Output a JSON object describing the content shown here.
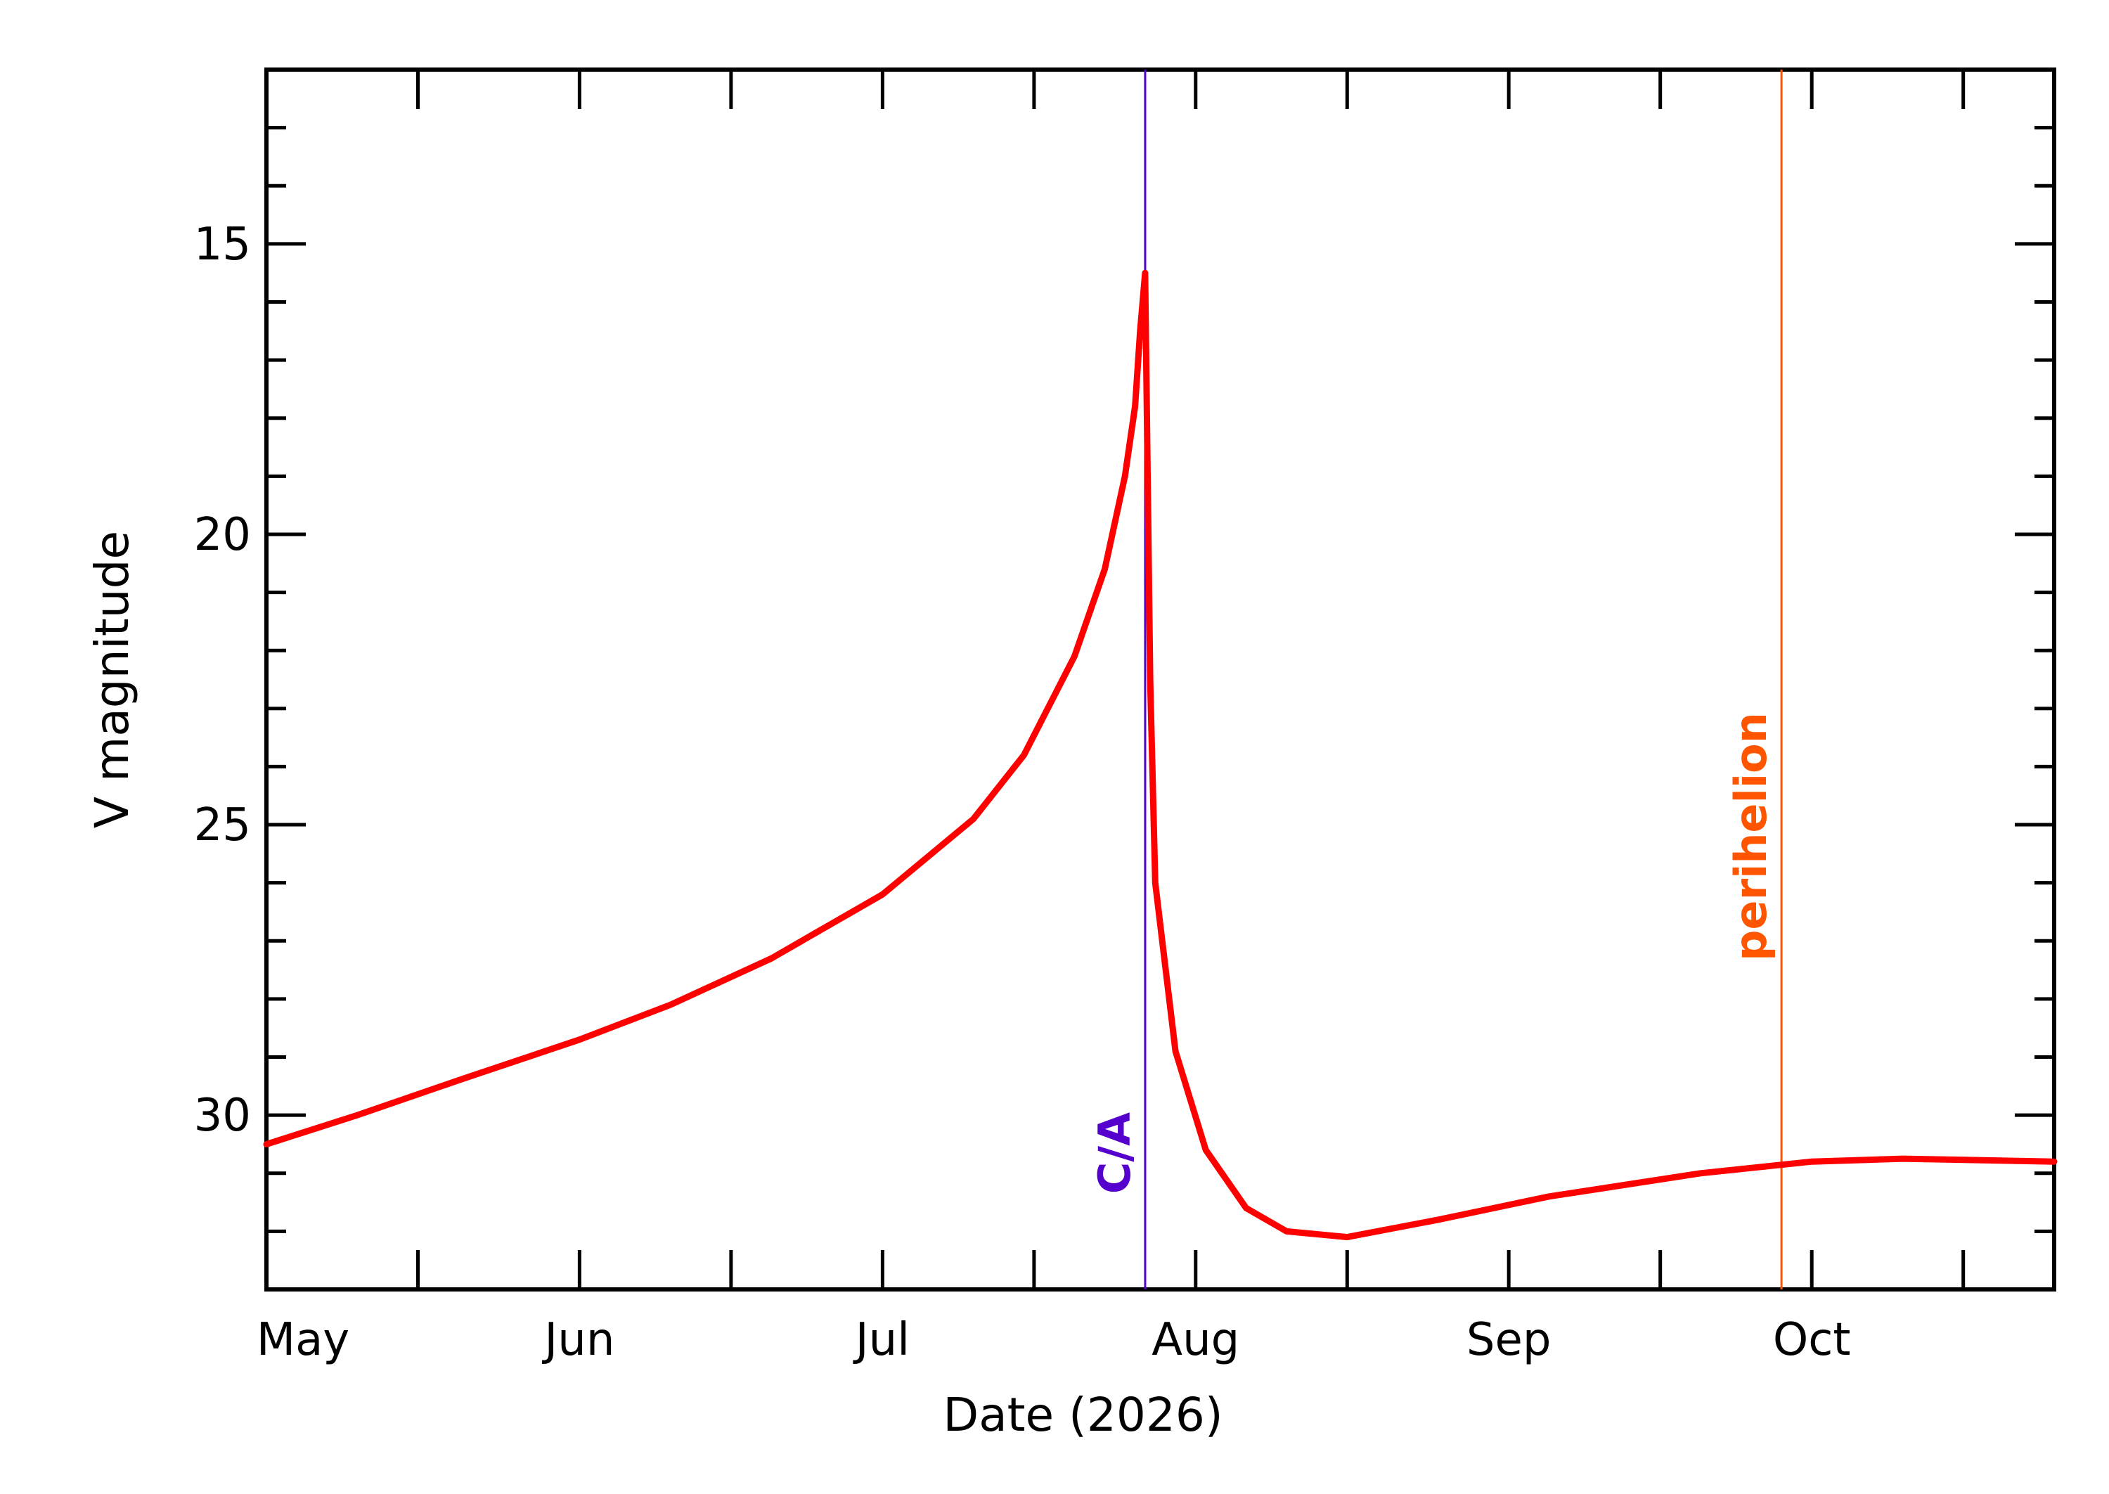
{
  "chart_data": {
    "type": "line",
    "xlabel": "Date (2026)",
    "ylabel": "V magnitude",
    "x_axis": {
      "type": "date",
      "range": [
        "2026-05-01",
        "2026-10-25"
      ],
      "major_ticks": [
        {
          "date": "2026-05-01",
          "label": "May"
        },
        {
          "date": "2026-06-01",
          "label": "Jun"
        },
        {
          "date": "2026-07-01",
          "label": "Jul"
        },
        {
          "date": "2026-08-01",
          "label": "Aug"
        },
        {
          "date": "2026-09-01",
          "label": "Sep"
        },
        {
          "date": "2026-10-01",
          "label": "Oct"
        }
      ]
    },
    "y_axis": {
      "reversed": true,
      "range": [
        33,
        12
      ],
      "major_ticks": [
        15,
        20,
        25,
        30
      ],
      "minor_step": 1
    },
    "grid": false,
    "series": [
      {
        "color": "#ff0000",
        "points": [
          [
            "2026-05-01",
            30.5
          ],
          [
            "2026-05-10",
            30.0
          ],
          [
            "2026-05-20",
            29.4
          ],
          [
            "2026-06-01",
            28.7
          ],
          [
            "2026-06-10",
            28.1
          ],
          [
            "2026-06-20",
            27.3
          ],
          [
            "2026-07-01",
            26.2
          ],
          [
            "2026-07-10",
            24.9
          ],
          [
            "2026-07-15",
            23.8
          ],
          [
            "2026-07-20",
            22.1
          ],
          [
            "2026-07-23",
            20.6
          ],
          [
            "2026-07-25",
            19.0
          ],
          [
            "2026-07-26",
            17.8
          ],
          [
            "2026-07-26T12:00",
            16.5
          ],
          [
            "2026-07-27",
            15.5
          ],
          [
            "2026-07-27T12:00",
            22.5
          ],
          [
            "2026-07-28",
            26.0
          ],
          [
            "2026-07-30",
            28.9
          ],
          [
            "2026-08-02",
            30.6
          ],
          [
            "2026-08-06",
            31.6
          ],
          [
            "2026-08-10",
            32.0
          ],
          [
            "2026-08-16",
            32.1
          ],
          [
            "2026-08-25",
            31.8
          ],
          [
            "2026-09-05",
            31.4
          ],
          [
            "2026-09-20",
            31.0
          ],
          [
            "2026-10-01",
            30.8
          ],
          [
            "2026-10-10",
            30.75
          ],
          [
            "2026-10-25",
            30.8
          ]
        ]
      }
    ],
    "annotations": [
      {
        "label": "C/A",
        "date": "2026-07-27",
        "color": "#5500cc"
      },
      {
        "label": "perihelion",
        "date": "2026-09-28",
        "color": "#ff5500"
      }
    ]
  }
}
